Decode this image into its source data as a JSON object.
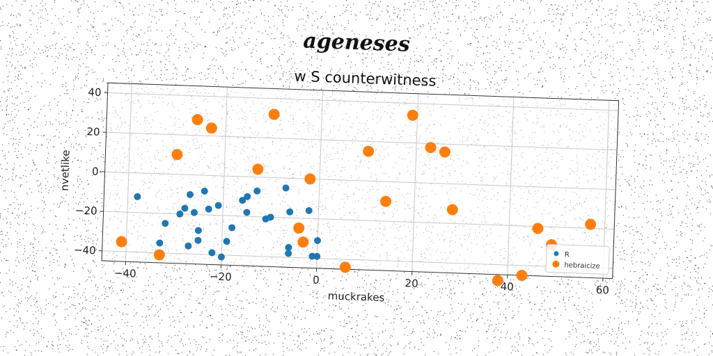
{
  "figure_title": "ageneses",
  "chart_data": {
    "type": "scatter",
    "title": "w S counterwitness",
    "xlabel": "muckrakes",
    "ylabel": "nvetlike",
    "xlim": [
      -45,
      62
    ],
    "ylim": [
      -45,
      45
    ],
    "xticks": [
      -40,
      -20,
      0,
      20,
      40,
      60
    ],
    "yticks": [
      -40,
      -20,
      0,
      20,
      40
    ],
    "xtick_labels": [
      "−40",
      "−20",
      "0",
      "20",
      "40",
      "60"
    ],
    "ytick_labels": [
      "−40",
      "−20",
      "0",
      "20",
      "40"
    ],
    "grid": true,
    "legend_position": "lower-right",
    "series": [
      {
        "name": "R",
        "color": "#1f77b4",
        "points": [
          [
            -38,
            -12
          ],
          [
            -32,
            -25
          ],
          [
            -33,
            -35
          ],
          [
            -29,
            -20
          ],
          [
            -27,
            -10
          ],
          [
            -28,
            -17
          ],
          [
            -26,
            -19
          ],
          [
            -25,
            -28
          ],
          [
            -25,
            -33
          ],
          [
            -27,
            -36
          ],
          [
            -24,
            -8
          ],
          [
            -23,
            -17
          ],
          [
            -21,
            -15
          ],
          [
            -22,
            -39
          ],
          [
            -20,
            -41
          ],
          [
            -19,
            -33
          ],
          [
            -18,
            -26
          ],
          [
            -16,
            -12
          ],
          [
            -15,
            -10
          ],
          [
            -15,
            -18
          ],
          [
            -13,
            -7
          ],
          [
            -11,
            -21
          ],
          [
            -10,
            -20
          ],
          [
            -7,
            -5
          ],
          [
            -6,
            -17
          ],
          [
            -6,
            -35
          ],
          [
            -6,
            -38
          ],
          [
            -2,
            -16
          ],
          [
            -1,
            -39
          ],
          [
            0,
            -39
          ],
          [
            0,
            -31
          ]
        ]
      },
      {
        "name": "hebraicize",
        "color": "#ff7f0e",
        "points": [
          [
            -41,
            -35
          ],
          [
            -33,
            -41
          ],
          [
            -30,
            10
          ],
          [
            -26,
            28
          ],
          [
            -23,
            24
          ],
          [
            -13,
            4
          ],
          [
            -10,
            32
          ],
          [
            -4,
            -25
          ],
          [
            -3,
            -32
          ],
          [
            -2,
            0
          ],
          [
            6,
            -44
          ],
          [
            10,
            15
          ],
          [
            14,
            -10
          ],
          [
            19,
            34
          ],
          [
            23,
            18
          ],
          [
            26,
            16
          ],
          [
            28,
            -13
          ],
          [
            38,
            -48
          ],
          [
            43,
            -45
          ],
          [
            46,
            -21
          ],
          [
            49,
            -29
          ],
          [
            57,
            -18
          ]
        ]
      }
    ]
  }
}
